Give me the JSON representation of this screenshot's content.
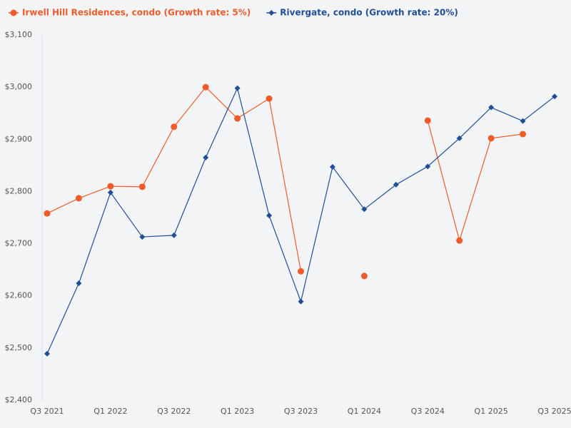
{
  "chart_data": {
    "type": "line",
    "categories": [
      "Q3 2021",
      null,
      "Q1 2022",
      null,
      "Q3 2022",
      null,
      "Q1 2023",
      null,
      "Q3 2023",
      null,
      "Q1 2024",
      null,
      "Q3 2024",
      null,
      "Q1 2025",
      null,
      "Q3 2025"
    ],
    "series": [
      {
        "name": "Irwell Hill Residences, condo (Growth rate: 5%)",
        "color": "#f15a29",
        "marker": "circle",
        "values": [
          2758,
          2787,
          2810,
          2809,
          2924,
          3000,
          2940,
          2978,
          2647,
          null,
          2638,
          null,
          2936,
          2706,
          2902,
          2910,
          null
        ]
      },
      {
        "name": "Rivergate, condo (Growth rate: 20%)",
        "color": "#1f4e99",
        "marker": "diamond",
        "values": [
          2489,
          2624,
          2798,
          2713,
          2716,
          2865,
          2998,
          2754,
          2589,
          2847,
          2766,
          2813,
          2848,
          2902,
          2961,
          2935,
          2982
        ]
      }
    ],
    "ylim": [
      2400,
      3100
    ],
    "yticks": [
      {
        "value": 2400,
        "label": "$2,400"
      },
      {
        "value": 2500,
        "label": "$2,500"
      },
      {
        "value": 2600,
        "label": "$2,600"
      },
      {
        "value": 2700,
        "label": "$2,700"
      },
      {
        "value": 2800,
        "label": "$2,800"
      },
      {
        "value": 2900,
        "label": "$2,900"
      },
      {
        "value": 3000,
        "label": "$3,000"
      },
      {
        "value": 3100,
        "label": "$3,100"
      }
    ],
    "grid": false,
    "legend": "top-left"
  }
}
